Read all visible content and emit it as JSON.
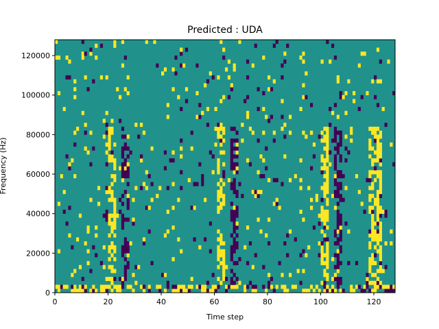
{
  "chart_data": {
    "type": "heatmap",
    "title": "Predicted : UDA",
    "xlabel": "Time step",
    "ylabel": "Frequency (Hz)",
    "xlim": [
      0,
      128
    ],
    "ylim": [
      0,
      128000
    ],
    "x_ticks": [
      0,
      20,
      40,
      60,
      80,
      100,
      120
    ],
    "y_ticks": [
      0,
      20000,
      40000,
      60000,
      80000,
      100000,
      120000
    ],
    "x_tick_labels": [
      "0",
      "20",
      "40",
      "60",
      "80",
      "100",
      "120"
    ],
    "y_tick_labels": [
      "0",
      "20000",
      "40000",
      "60000",
      "80000",
      "100000",
      "120000"
    ],
    "n_time_steps": 128,
    "n_freq_bins": 64,
    "value_levels": [
      -1,
      0,
      1
    ],
    "background_level": 0,
    "colormap": {
      "-1": "#440154",
      "0": "#21918c",
      "1": "#fde725"
    },
    "bright_bands_time_ranges": [
      [
        20,
        22
      ],
      [
        61,
        63
      ],
      [
        100,
        102
      ],
      [
        118,
        122
      ]
    ],
    "dark_bands_time_ranges": [
      [
        25,
        27
      ],
      [
        66,
        68
      ],
      [
        105,
        107
      ]
    ],
    "bottom_row_note": "lowest frequency rows contain many nonzero cells across all time steps",
    "grid": false
  }
}
